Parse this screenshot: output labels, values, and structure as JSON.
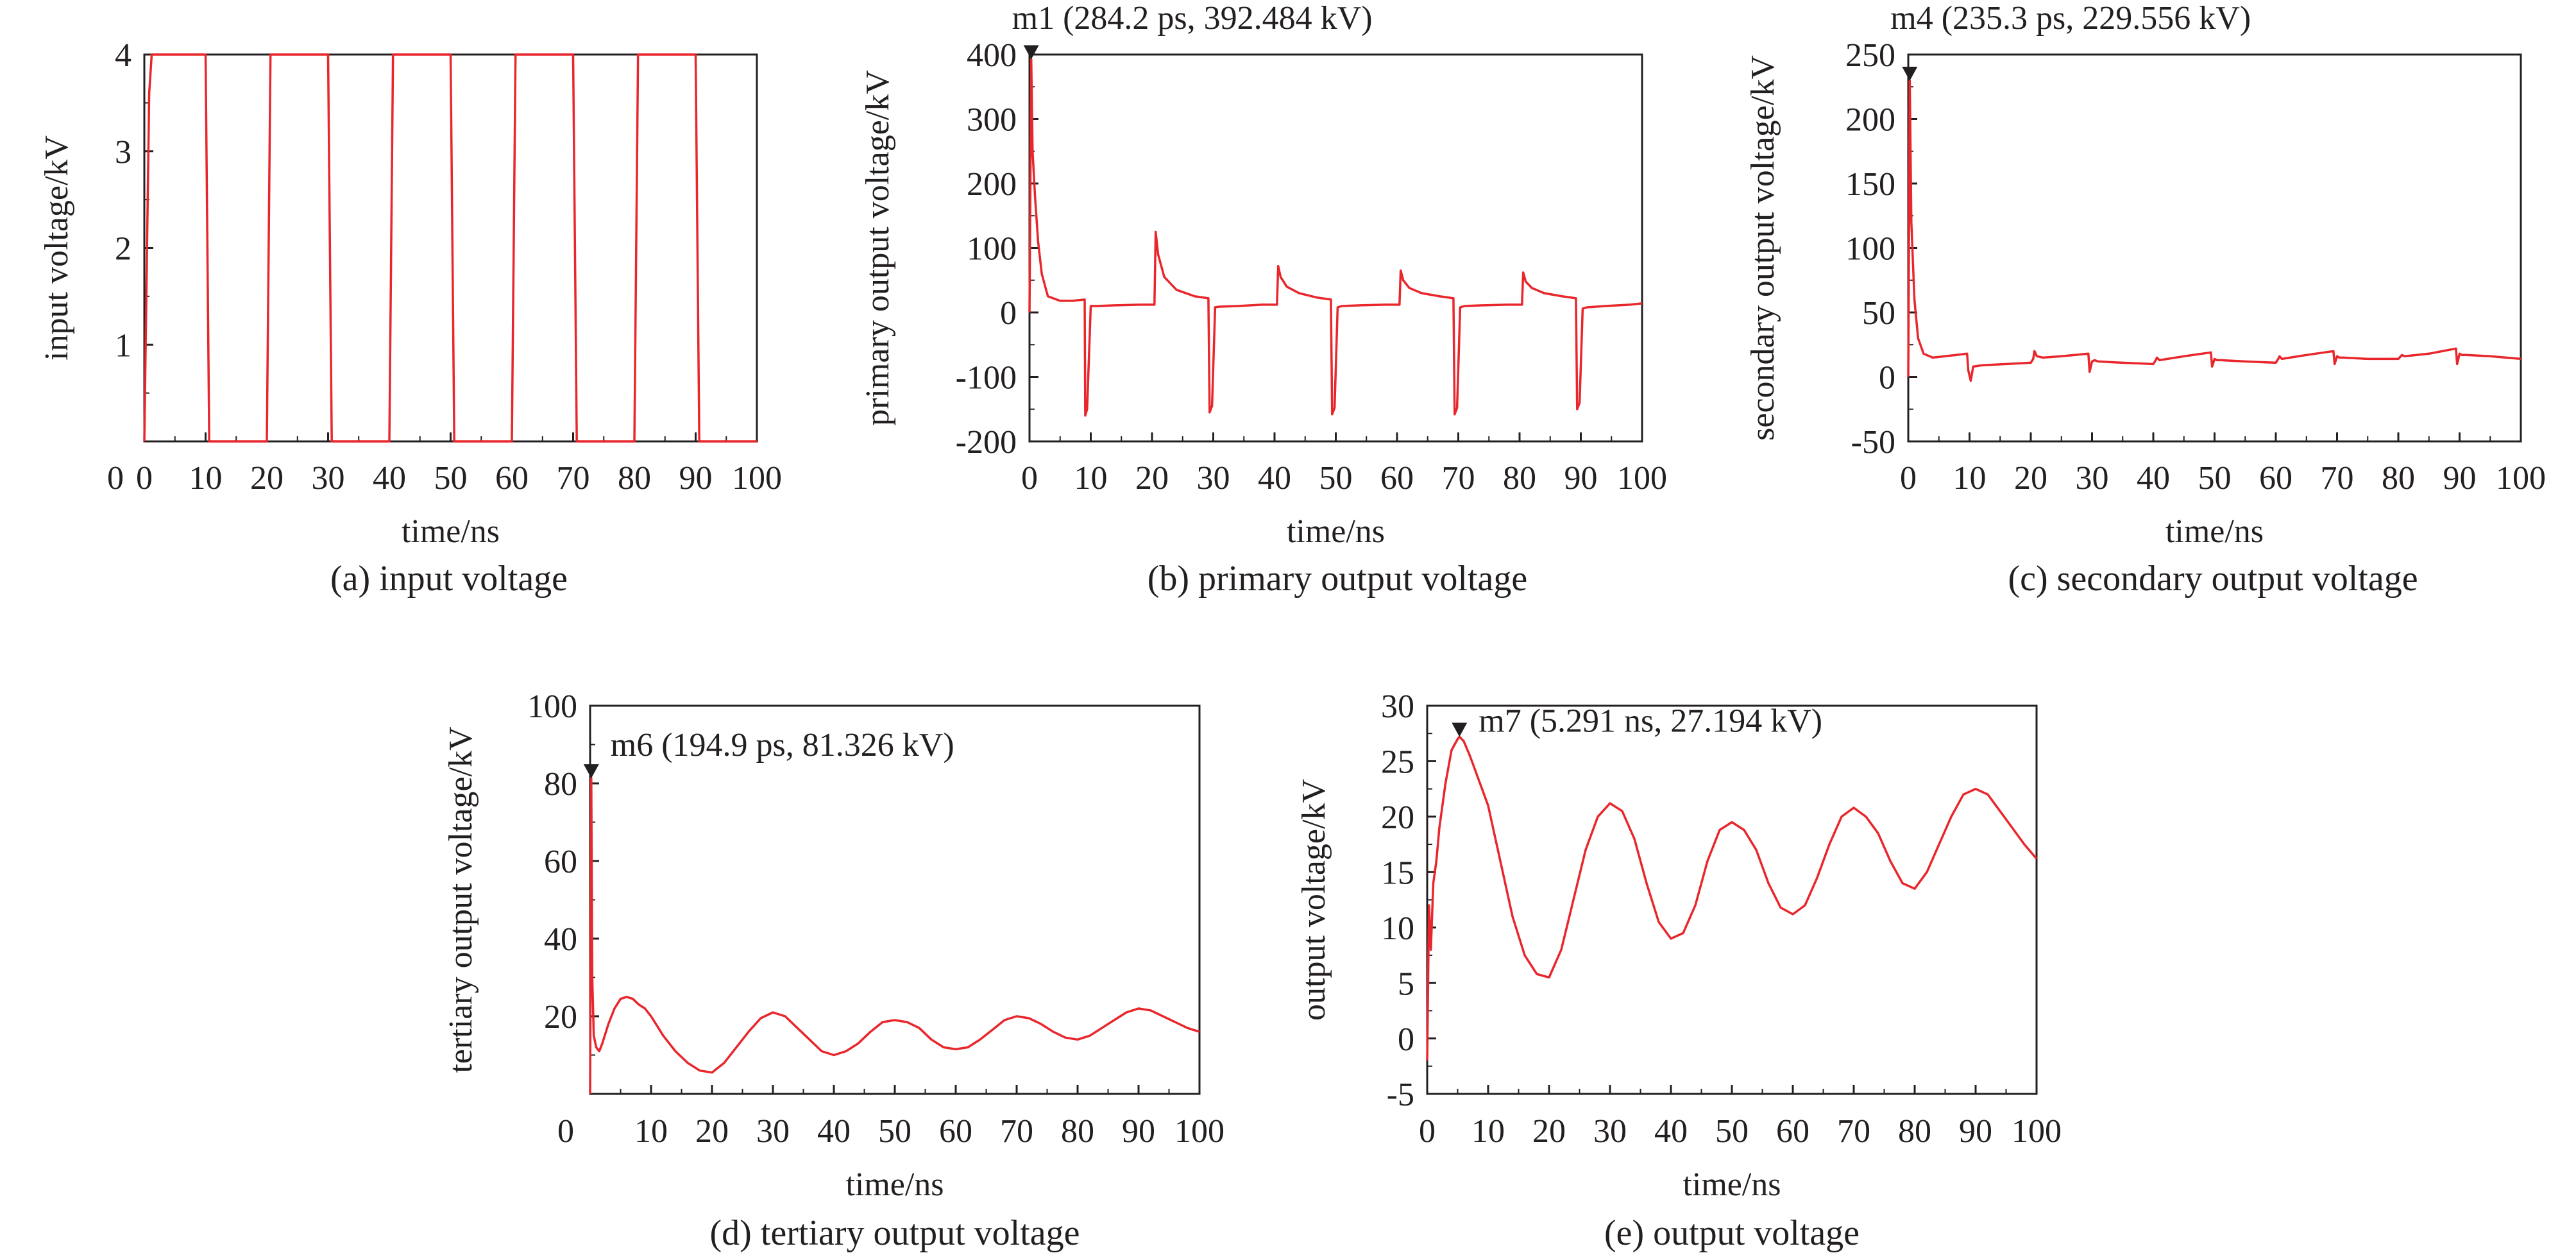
{
  "figure": {
    "line_color": "#e8262b",
    "axis_color": "#231f20",
    "marker_color": "#231f20"
  },
  "chart_data": [
    {
      "id": "a",
      "type": "line",
      "caption": "(a) input voltage",
      "xlabel": "time/ns",
      "ylabel": "input voltage/kV",
      "xlim": [
        0,
        100
      ],
      "ylim": [
        0,
        4
      ],
      "xticks": [
        0,
        10,
        20,
        30,
        40,
        50,
        60,
        70,
        80,
        90,
        100
      ],
      "yticks": [
        1,
        2,
        3,
        4
      ],
      "origin_label": "0",
      "grid": false,
      "series": [
        {
          "x": [
            0,
            0.8,
            1.2,
            10,
            10.6,
            20,
            20.6,
            30,
            30.6,
            40,
            40.6,
            50,
            50.6,
            60,
            60.6,
            70,
            70.6,
            80,
            80.6,
            90,
            90.6,
            100
          ],
          "y": [
            0,
            3.6,
            4,
            4,
            0,
            0,
            4,
            4,
            0,
            0,
            4,
            4,
            0,
            0,
            4,
            4,
            0,
            0,
            4,
            4,
            0,
            0
          ]
        }
      ]
    },
    {
      "id": "b",
      "type": "line",
      "caption": "(b)  primary output voltage",
      "xlabel": "time/ns",
      "ylabel": "primary output voltage/kV",
      "xlim": [
        0,
        100
      ],
      "ylim": [
        -200,
        400
      ],
      "xticks": [
        0,
        10,
        20,
        30,
        40,
        50,
        60,
        70,
        80,
        90,
        100
      ],
      "yticks": [
        -200,
        -100,
        0,
        100,
        200,
        300,
        400
      ],
      "grid": false,
      "marker": {
        "label": "m1 (284.2 ps, 392.484 kV)",
        "x": 0.28,
        "y": 392.5
      },
      "series": [
        {
          "x": [
            0,
            0.28,
            0.5,
            0.9,
            1.4,
            2,
            3,
            5,
            7,
            9,
            9.1,
            9.4,
            10,
            11,
            14,
            18,
            20.4,
            20.6,
            21,
            22,
            24,
            27,
            29.2,
            29.4,
            29.8,
            30.3,
            31,
            34,
            38,
            40.4,
            40.6,
            41,
            42,
            44,
            47,
            49.2,
            49.4,
            49.8,
            50.3,
            51,
            54,
            58,
            60.4,
            60.6,
            61,
            62,
            64,
            67,
            69.2,
            69.4,
            69.8,
            70.3,
            71,
            74,
            78,
            80.4,
            80.6,
            81,
            82,
            84,
            87,
            89.2,
            89.4,
            89.8,
            90.3,
            91,
            94,
            98,
            100
          ],
          "y": [
            0,
            392.5,
            250,
            180,
            110,
            60,
            25,
            18,
            18,
            20,
            -160,
            -150,
            10,
            10,
            11,
            12,
            12,
            125,
            90,
            55,
            35,
            25,
            22,
            -155,
            -145,
            8,
            9,
            10,
            12,
            12,
            72,
            55,
            40,
            30,
            23,
            20,
            -158,
            -148,
            8,
            10,
            11,
            12,
            12,
            65,
            50,
            38,
            30,
            25,
            22,
            -158,
            -148,
            8,
            10,
            11,
            12,
            12,
            62,
            48,
            38,
            30,
            25,
            22,
            -150,
            -140,
            6,
            8,
            10,
            12,
            14
          ]
        }
      ]
    },
    {
      "id": "c",
      "type": "line",
      "caption": "(c)  secondary output voltage",
      "xlabel": "time/ns",
      "ylabel": "secondary output voltage/kV",
      "xlim": [
        0,
        100
      ],
      "ylim": [
        -50,
        250
      ],
      "xticks": [
        0,
        10,
        20,
        30,
        40,
        50,
        60,
        70,
        80,
        90,
        100
      ],
      "yticks": [
        -50,
        0,
        50,
        100,
        150,
        200,
        250
      ],
      "grid": false,
      "marker": {
        "label": "m4 (235.3 ps, 229.556 kV)",
        "x": 0.24,
        "y": 229.6
      },
      "series": [
        {
          "x": [
            0,
            0.24,
            0.5,
            1,
            1.6,
            2.5,
            4,
            6,
            9.6,
            9.8,
            10.2,
            10.6,
            12,
            16,
            20,
            20.4,
            20.6,
            21,
            22,
            25,
            29.4,
            29.6,
            30,
            30.4,
            31,
            35,
            40,
            40.4,
            40.6,
            41,
            45,
            49.4,
            49.6,
            50,
            50.4,
            51,
            55,
            60,
            60.4,
            60.6,
            61,
            65,
            69.4,
            69.6,
            70,
            70.4,
            71,
            75,
            80,
            80.4,
            80.6,
            81,
            85,
            89.4,
            89.6,
            90,
            90.4,
            91,
            95,
            100
          ],
          "y": [
            0,
            229.6,
            120,
            60,
            30,
            18,
            15,
            16,
            18,
            5,
            -3,
            8,
            9,
            10,
            11,
            14,
            20,
            16,
            15,
            16,
            18,
            4,
            12,
            13,
            12,
            11,
            10,
            13,
            15,
            13,
            16,
            19,
            8,
            14,
            13,
            13,
            12,
            11,
            14,
            16,
            14,
            17,
            20,
            10,
            16,
            15,
            15,
            14,
            14,
            16,
            17,
            16,
            18,
            22,
            10,
            18,
            17,
            17,
            16,
            14
          ]
        }
      ]
    },
    {
      "id": "d",
      "type": "line",
      "caption": "(d)  tertiary output voltage",
      "xlabel": "time/ns",
      "ylabel": "tertiary output voltage/kV",
      "xlim": [
        0,
        100
      ],
      "ylim": [
        0,
        100
      ],
      "xticks": [
        10,
        20,
        30,
        40,
        50,
        60,
        70,
        80,
        90,
        100
      ],
      "yticks": [
        20,
        40,
        60,
        80,
        100
      ],
      "origin_label": "0",
      "grid": false,
      "marker": {
        "label": "m6 (194.9 ps, 81.326 kV)",
        "x": 0.19,
        "y": 81.3
      },
      "series": [
        {
          "x": [
            0,
            0.19,
            0.35,
            0.6,
            1,
            1.5,
            2,
            3,
            4,
            5,
            6,
            7,
            8,
            9,
            10,
            12,
            14,
            16,
            18,
            20,
            22,
            24,
            26,
            28,
            30,
            32,
            34,
            36,
            38,
            40,
            42,
            44,
            46,
            48,
            50,
            52,
            54,
            56,
            58,
            60,
            62,
            64,
            66,
            68,
            70,
            72,
            74,
            76,
            78,
            80,
            82,
            84,
            86,
            88,
            90,
            92,
            94,
            96,
            98,
            100
          ],
          "y": [
            0,
            81.3,
            30,
            15,
            12,
            11,
            13,
            18,
            22,
            24.5,
            25,
            24.5,
            23,
            22,
            20,
            15,
            11,
            8,
            6,
            5.5,
            8,
            12,
            16,
            19.5,
            21,
            20,
            17,
            14,
            11,
            10,
            11,
            13,
            16,
            18.5,
            19,
            18.5,
            17,
            14,
            12,
            11.5,
            12,
            14,
            16.5,
            19,
            20,
            19.5,
            18,
            16,
            14.5,
            14,
            15,
            17,
            19,
            21,
            22,
            21.5,
            20,
            18.5,
            17,
            16
          ]
        }
      ]
    },
    {
      "id": "e",
      "type": "line",
      "caption": "(e)  output voltage",
      "xlabel": "time/ns",
      "ylabel": "output voltage/kV",
      "xlim": [
        0,
        100
      ],
      "ylim": [
        -5,
        30
      ],
      "xticks": [
        0,
        10,
        20,
        30,
        40,
        50,
        60,
        70,
        80,
        90,
        100
      ],
      "yticks": [
        -5,
        0,
        5,
        10,
        15,
        20,
        25,
        30
      ],
      "grid": false,
      "marker": {
        "label": "m7 (5.291 ns, 27.194 kV)",
        "x": 5.291,
        "y": 27.194
      },
      "series": [
        {
          "x": [
            0,
            0.3,
            0.6,
            1,
            1.5,
            2,
            3,
            4,
            5,
            5.3,
            6,
            7,
            8,
            9,
            10,
            12,
            14,
            16,
            18,
            20,
            22,
            24,
            26,
            28,
            30,
            32,
            34,
            36,
            38,
            40,
            42,
            44,
            46,
            48,
            50,
            52,
            54,
            56,
            58,
            60,
            62,
            64,
            66,
            68,
            70,
            72,
            74,
            76,
            78,
            80,
            82,
            84,
            86,
            88,
            90,
            92,
            94,
            96,
            98,
            100
          ],
          "y": [
            -2,
            12,
            8,
            14,
            16,
            19,
            23,
            26,
            27,
            27.2,
            26.8,
            25.5,
            24,
            22.5,
            21,
            16,
            11,
            7.5,
            5.8,
            5.5,
            8,
            12.5,
            17,
            20,
            21.2,
            20.5,
            18,
            14,
            10.5,
            9,
            9.5,
            12,
            16,
            18.8,
            19.5,
            18.8,
            17,
            14,
            11.8,
            11.2,
            12,
            14.5,
            17.5,
            20,
            20.8,
            20,
            18.5,
            16,
            14,
            13.5,
            15,
            17.5,
            20,
            22,
            22.5,
            22,
            20.5,
            19,
            17.5,
            16.2
          ]
        }
      ]
    }
  ]
}
